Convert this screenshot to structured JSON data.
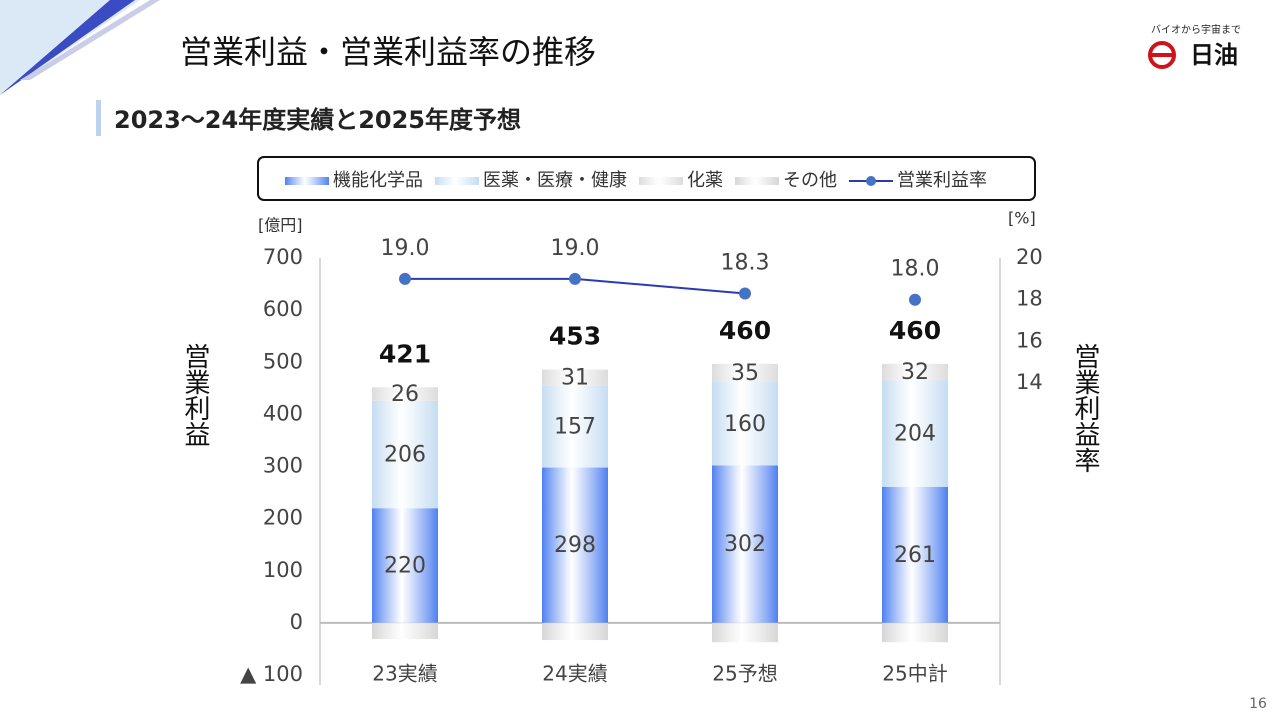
{
  "header": {
    "title": "営業利益・営業利益率の推移",
    "subtitle": "2023～24年度実績と2025年度予想"
  },
  "logo": {
    "tagline": "バイオから宇宙まで",
    "name": "日油"
  },
  "page_number": "16",
  "chart_data": {
    "type": "bar",
    "stacked": true,
    "categories": [
      "23実績",
      "24実績",
      "25予想",
      "25中計"
    ],
    "y_label": "営業利益",
    "y2_label": "営業利益率",
    "y_unit": "[億円]",
    "y2_unit": "[%]",
    "ylim": [
      -100,
      700
    ],
    "yticks": [
      {
        "value": -100,
        "label": "▲ 100"
      },
      0,
      100,
      200,
      300,
      400,
      500,
      600,
      700
    ],
    "y2lim": [
      0,
      20
    ],
    "y2ticks": [
      14,
      16,
      18,
      20
    ],
    "legend": "top",
    "series": [
      {
        "name": "機能化学品",
        "color": "#4f80f0",
        "values": [
          220,
          298,
          302,
          261
        ]
      },
      {
        "name": "医薬・医療・健康",
        "color": "#c4dcf2",
        "values": [
          206,
          157,
          160,
          204
        ]
      },
      {
        "name": "化薬",
        "color": "#dcdcdc",
        "values": [
          26,
          31,
          35,
          32
        ]
      },
      {
        "name": "その他",
        "color": "#d6d6d6",
        "values": [
          -31,
          -33,
          -37,
          -37
        ]
      },
      {
        "name": "営業利益率",
        "type": "line",
        "axis": "y2",
        "color": "#2a3bb5",
        "marker_color": "#4472c4",
        "values": [
          19.0,
          19.0,
          18.3,
          18.0
        ],
        "value_labels": [
          "19.0",
          "19.0",
          "18.3",
          "18.0"
        ],
        "last_marker_only": true
      }
    ],
    "totals": [
      421,
      453,
      460,
      460
    ]
  }
}
